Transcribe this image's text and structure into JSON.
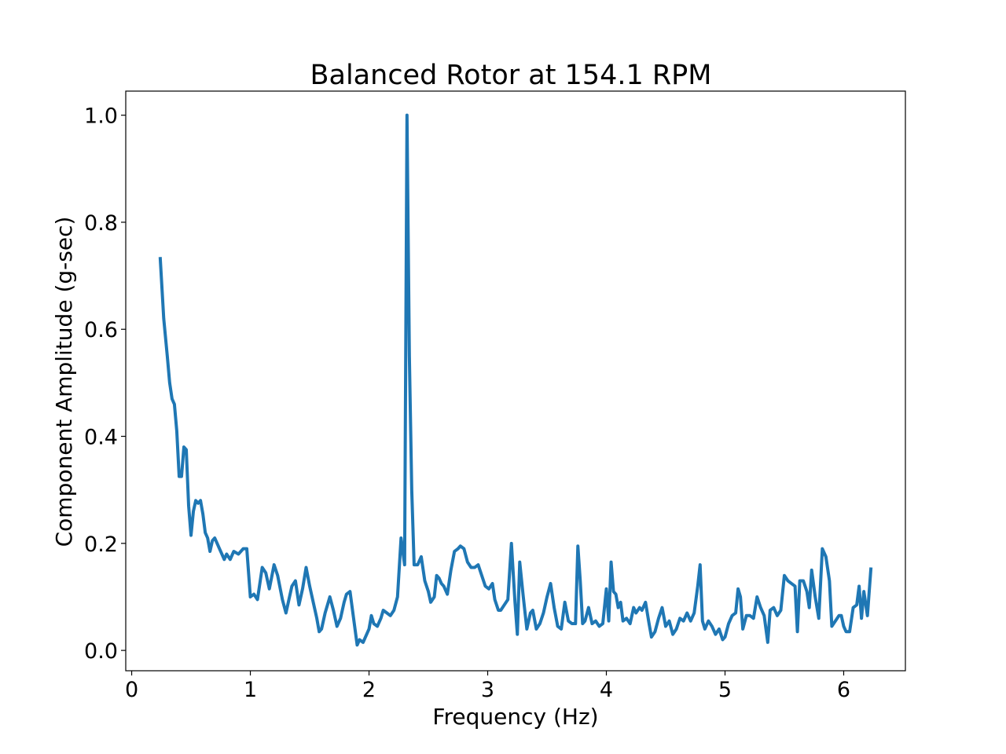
{
  "chart_data": {
    "type": "line",
    "title": "Balanced Rotor at 154.1 RPM",
    "xlabel": "Frequency (Hz)",
    "ylabel": "Component Amplitude (g-sec)",
    "xlim": [
      -0.05,
      6.52
    ],
    "ylim": [
      -0.038,
      1.045
    ],
    "xticks": [
      0,
      1,
      2,
      3,
      4,
      5,
      6
    ],
    "yticks": [
      0.0,
      0.2,
      0.4,
      0.6,
      0.8,
      1.0
    ],
    "ytick_labels": [
      "0.0",
      "0.2",
      "0.4",
      "0.6",
      "0.8",
      "1.0"
    ],
    "grid": false,
    "line_color": "#1f77b4",
    "series": [
      {
        "x": [
          0.24,
          0.27,
          0.3,
          0.32,
          0.34,
          0.36,
          0.38,
          0.4,
          0.42,
          0.44,
          0.46,
          0.48,
          0.5,
          0.52,
          0.54,
          0.56,
          0.58,
          0.6,
          0.62,
          0.64,
          0.66,
          0.68,
          0.7,
          0.72,
          0.74,
          0.76,
          0.78,
          0.8,
          0.83,
          0.86,
          0.9,
          0.94,
          0.97,
          1.0,
          1.03,
          1.06,
          1.1,
          1.13,
          1.16,
          1.2,
          1.23,
          1.27,
          1.3,
          1.32,
          1.35,
          1.38,
          1.41,
          1.44,
          1.47,
          1.5,
          1.53,
          1.56,
          1.58,
          1.6,
          1.63,
          1.67,
          1.7,
          1.73,
          1.76,
          1.79,
          1.81,
          1.84,
          1.87,
          1.9,
          1.92,
          1.95,
          1.97,
          2.0,
          2.02,
          2.04,
          2.07,
          2.1,
          2.12,
          2.15,
          2.18,
          2.21,
          2.24,
          2.27,
          2.3,
          2.32,
          2.34,
          2.36,
          2.38,
          2.41,
          2.44,
          2.47,
          2.5,
          2.52,
          2.55,
          2.57,
          2.59,
          2.61,
          2.63,
          2.66,
          2.69,
          2.72,
          2.75,
          2.77,
          2.8,
          2.83,
          2.86,
          2.89,
          2.92,
          2.95,
          2.98,
          3.01,
          3.04,
          3.06,
          3.09,
          3.11,
          3.14,
          3.17,
          3.2,
          3.23,
          3.25,
          3.27,
          3.3,
          3.33,
          3.36,
          3.38,
          3.41,
          3.44,
          3.47,
          3.5,
          3.53,
          3.56,
          3.59,
          3.62,
          3.65,
          3.68,
          3.71,
          3.74,
          3.76,
          3.78,
          3.8,
          3.82,
          3.85,
          3.88,
          3.91,
          3.94,
          3.97,
          4.0,
          4.02,
          4.04,
          4.06,
          4.08,
          4.1,
          4.12,
          4.14,
          4.17,
          4.2,
          4.23,
          4.25,
          4.28,
          4.3,
          4.33,
          4.36,
          4.38,
          4.41,
          4.44,
          4.47,
          4.5,
          4.53,
          4.56,
          4.59,
          4.62,
          4.65,
          4.68,
          4.71,
          4.74,
          4.77,
          4.79,
          4.81,
          4.83,
          4.86,
          4.89,
          4.92,
          4.95,
          4.98,
          5.0,
          5.03,
          5.06,
          5.09,
          5.11,
          5.13,
          5.15,
          5.18,
          5.21,
          5.24,
          5.27,
          5.3,
          5.33,
          5.36,
          5.38,
          5.41,
          5.44,
          5.47,
          5.5,
          5.53,
          5.56,
          5.59,
          5.61,
          5.63,
          5.66,
          5.69,
          5.71,
          5.73,
          5.76,
          5.79,
          5.82,
          5.85,
          5.88,
          5.9,
          5.93,
          5.96,
          5.98,
          6.0,
          6.02,
          6.05,
          6.08,
          6.11,
          6.13,
          6.15,
          6.17,
          6.2,
          6.23
        ],
        "values": [
          0.735,
          0.62,
          0.55,
          0.5,
          0.47,
          0.46,
          0.41,
          0.325,
          0.325,
          0.38,
          0.375,
          0.27,
          0.215,
          0.26,
          0.28,
          0.275,
          0.28,
          0.255,
          0.22,
          0.21,
          0.185,
          0.205,
          0.21,
          0.2,
          0.19,
          0.18,
          0.17,
          0.18,
          0.17,
          0.185,
          0.18,
          0.19,
          0.19,
          0.1,
          0.105,
          0.095,
          0.155,
          0.145,
          0.115,
          0.16,
          0.14,
          0.095,
          0.07,
          0.09,
          0.12,
          0.13,
          0.085,
          0.115,
          0.155,
          0.12,
          0.09,
          0.06,
          0.035,
          0.04,
          0.07,
          0.1,
          0.075,
          0.045,
          0.06,
          0.09,
          0.105,
          0.11,
          0.06,
          0.01,
          0.02,
          0.015,
          0.025,
          0.04,
          0.065,
          0.05,
          0.045,
          0.06,
          0.075,
          0.07,
          0.065,
          0.075,
          0.1,
          0.21,
          0.16,
          1.0,
          0.55,
          0.3,
          0.16,
          0.16,
          0.175,
          0.13,
          0.11,
          0.09,
          0.1,
          0.14,
          0.135,
          0.125,
          0.12,
          0.105,
          0.15,
          0.185,
          0.19,
          0.195,
          0.19,
          0.165,
          0.155,
          0.155,
          0.16,
          0.14,
          0.12,
          0.115,
          0.125,
          0.095,
          0.075,
          0.075,
          0.085,
          0.095,
          0.2,
          0.09,
          0.03,
          0.165,
          0.1,
          0.04,
          0.07,
          0.075,
          0.04,
          0.05,
          0.07,
          0.1,
          0.125,
          0.08,
          0.045,
          0.04,
          0.09,
          0.055,
          0.05,
          0.05,
          0.195,
          0.13,
          0.05,
          0.055,
          0.08,
          0.05,
          0.055,
          0.045,
          0.05,
          0.115,
          0.055,
          0.165,
          0.11,
          0.105,
          0.08,
          0.09,
          0.055,
          0.06,
          0.05,
          0.08,
          0.07,
          0.08,
          0.075,
          0.09,
          0.05,
          0.025,
          0.035,
          0.06,
          0.08,
          0.045,
          0.055,
          0.03,
          0.04,
          0.06,
          0.055,
          0.07,
          0.055,
          0.07,
          0.12,
          0.16,
          0.055,
          0.04,
          0.055,
          0.045,
          0.03,
          0.04,
          0.02,
          0.025,
          0.05,
          0.065,
          0.07,
          0.115,
          0.1,
          0.04,
          0.065,
          0.065,
          0.06,
          0.1,
          0.08,
          0.065,
          0.015,
          0.075,
          0.08,
          0.065,
          0.075,
          0.14,
          0.13,
          0.125,
          0.12,
          0.035,
          0.13,
          0.13,
          0.11,
          0.08,
          0.15,
          0.1,
          0.06,
          0.19,
          0.175,
          0.13,
          0.045,
          0.055,
          0.065,
          0.065,
          0.045,
          0.035,
          0.035,
          0.08,
          0.085,
          0.12,
          0.06,
          0.11,
          0.065,
          0.155
        ]
      }
    ]
  }
}
